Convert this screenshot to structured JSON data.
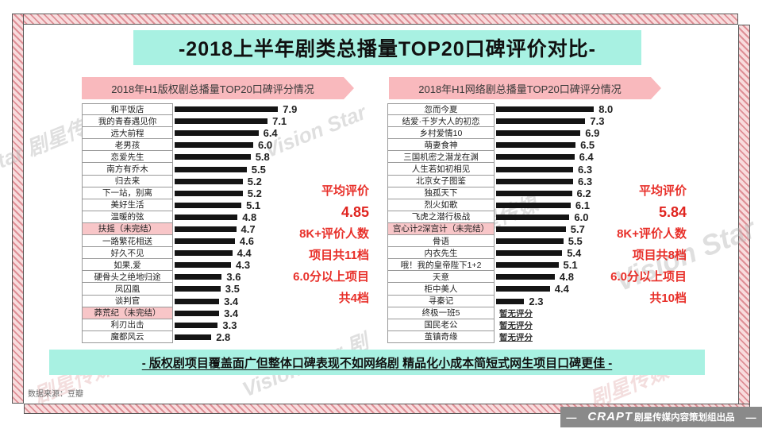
{
  "page": {
    "title": "-2018上半年剧类总播量TOP20口碑评价对比-",
    "conclusion": "- 版权剧项目覆盖面广但整体口碑表现不如网络剧 精品化小成本简短式网生项目口碑更佳 -",
    "source_note": "数据来源：豆瓣",
    "watermark_text": "Vision Star 剧星传媒",
    "footer": {
      "dash_left": "—",
      "brand": "CRAPT",
      "brand_text": "剧星传媒内容策划组出品",
      "dash_right": "—"
    },
    "colors": {
      "mint": "#a8f1e2",
      "pink_banner": "#f9b9bd",
      "highlight_pink": "#f8c6c8",
      "bar": "#141414",
      "red_text": "#e8302a",
      "hatch_dark": "#de8e95",
      "hatch_light": "#f8dcdd",
      "logo_bar": "#8a8a8a"
    }
  },
  "chart_data": [
    {
      "type": "bar",
      "orientation": "horizontal",
      "title": "2018年H1版权剧总播量TOP20口碑评分情况",
      "value_range": [
        0,
        9
      ],
      "rows": [
        {
          "label": "和平饭店",
          "value": 7.9,
          "value_label": "7.9"
        },
        {
          "label": "我的青春遇见你",
          "value": 7.1,
          "value_label": "7.1"
        },
        {
          "label": "远大前程",
          "value": 6.4,
          "value_label": "6.4"
        },
        {
          "label": "老男孩",
          "value": 6.0,
          "value_label": "6.0"
        },
        {
          "label": "恋爱先生",
          "value": 5.8,
          "value_label": "5.8"
        },
        {
          "label": "南方有乔木",
          "value": 5.5,
          "value_label": "5.5"
        },
        {
          "label": "归去来",
          "value": 5.2,
          "value_label": "5.2"
        },
        {
          "label": "下一站，别离",
          "value": 5.2,
          "value_label": "5.2"
        },
        {
          "label": "美好生活",
          "value": 5.1,
          "value_label": "5.1"
        },
        {
          "label": "温暖的弦",
          "value": 4.8,
          "value_label": "4.8"
        },
        {
          "label": "扶摇（未完结）",
          "value": 4.7,
          "value_label": "4.7",
          "highlight": true
        },
        {
          "label": "一路繁花相送",
          "value": 4.6,
          "value_label": "4.6"
        },
        {
          "label": "好久不见",
          "value": 4.4,
          "value_label": "4.4"
        },
        {
          "label": "如果,爱",
          "value": 4.3,
          "value_label": "4.3"
        },
        {
          "label": "硬骨头之绝地归途",
          "value": 3.6,
          "value_label": "3.6"
        },
        {
          "label": "凤囚凰",
          "value": 3.5,
          "value_label": "3.5"
        },
        {
          "label": "谈判官",
          "value": 3.4,
          "value_label": "3.4"
        },
        {
          "label": "莽荒纪（未完结）",
          "value": 3.4,
          "value_label": "3.4",
          "highlight": true
        },
        {
          "label": "利刃出击",
          "value": 3.3,
          "value_label": "3.3"
        },
        {
          "label": "魔都风云",
          "value": 2.8,
          "value_label": "2.8"
        }
      ],
      "annotation": [
        {
          "text": "平均评价"
        },
        {
          "text": "4.85",
          "emphasis": true
        },
        {
          "text": "8K+评价人数"
        },
        {
          "text": "项目共11档"
        },
        {
          "text": "6.0分以上项目"
        },
        {
          "text": "共4档"
        }
      ]
    },
    {
      "type": "bar",
      "orientation": "horizontal",
      "title": "2018年H1网络剧总播量TOP20口碑评分情况",
      "value_range": [
        0,
        9
      ],
      "rows": [
        {
          "label": "忽而今夏",
          "value": 8.0,
          "value_label": "8.0"
        },
        {
          "label": "结爱·千岁大人的初恋",
          "value": 7.3,
          "value_label": "7.3"
        },
        {
          "label": "乡村爱情10",
          "value": 6.9,
          "value_label": "6.9"
        },
        {
          "label": "萌妻食神",
          "value": 6.5,
          "value_label": "6.5"
        },
        {
          "label": "三国机密之潜龙在渊",
          "value": 6.4,
          "value_label": "6.4"
        },
        {
          "label": "人生若如初相见",
          "value": 6.3,
          "value_label": "6.3"
        },
        {
          "label": "北京女子图鉴",
          "value": 6.3,
          "value_label": "6.3"
        },
        {
          "label": "独孤天下",
          "value": 6.2,
          "value_label": "6.2"
        },
        {
          "label": "烈火如歌",
          "value": 6.1,
          "value_label": "6.1"
        },
        {
          "label": "飞虎之潜行极战",
          "value": 6.0,
          "value_label": "6.0"
        },
        {
          "label": "宫心计2深宫计（未完结）",
          "value": 5.7,
          "value_label": "5.7",
          "highlight": true
        },
        {
          "label": "骨语",
          "value": 5.5,
          "value_label": "5.5"
        },
        {
          "label": "内衣先生",
          "value": 5.4,
          "value_label": "5.4"
        },
        {
          "label": "哦！我的皇帝陛下1+2",
          "value": 5.1,
          "value_label": "5.1"
        },
        {
          "label": "天意",
          "value": 4.8,
          "value_label": "4.8"
        },
        {
          "label": "柜中美人",
          "value": 4.4,
          "value_label": "4.4"
        },
        {
          "label": "寻秦记",
          "value": 2.3,
          "value_label": "2.3"
        },
        {
          "label": "终极一班5",
          "value": null,
          "value_label": "暂无评分"
        },
        {
          "label": "国民老公",
          "value": null,
          "value_label": "暂无评分"
        },
        {
          "label": "茧镇奇缘",
          "value": null,
          "value_label": "暂无评分"
        }
      ],
      "annotation": [
        {
          "text": "平均评价"
        },
        {
          "text": "5.84",
          "emphasis": true
        },
        {
          "text": "8K+评价人数"
        },
        {
          "text": "项目共8档"
        },
        {
          "text": "6.0分以上项目"
        },
        {
          "text": "共10档"
        }
      ]
    }
  ]
}
